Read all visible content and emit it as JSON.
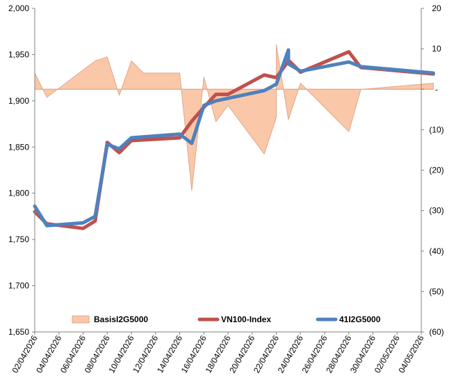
{
  "chart_data": {
    "type": "line",
    "x_dates": [
      "02/04/2026",
      "04/04/2026",
      "06/04/2026",
      "08/04/2026",
      "10/04/2026",
      "12/04/2026",
      "14/04/2026",
      "16/04/2026",
      "18/04/2026",
      "20/04/2026",
      "22/04/2026",
      "24/04/2026",
      "26/04/2026",
      "28/04/2026",
      "30/04/2026",
      "02/05/2026",
      "04/05/2026"
    ],
    "x_tick_labels": [
      "02/04/2026",
      "04/04/2026",
      "06/04/2026",
      "08/04/2026",
      "10/04/2026",
      "12/04/2026",
      "14/04/2026",
      "16/04/2026",
      "18/04/2026",
      "20/04/2026",
      "22/04/2026",
      "24/04/2026",
      "26/04/2026",
      "28/04/2026",
      "30/04/2026",
      "02/05/2026",
      "04/05/2026"
    ],
    "left_axis": {
      "ylim": [
        1650,
        2000
      ],
      "ticks": [
        "1,650",
        "1,700",
        "1,750",
        "1,800",
        "1,850",
        "1,900",
        "1,950",
        "2,000"
      ],
      "tick_values": [
        1650,
        1700,
        1750,
        1800,
        1850,
        1900,
        1950,
        2000
      ]
    },
    "right_axis": {
      "ylim": [
        -60,
        20
      ],
      "ticks": [
        "(60)",
        "(50)",
        "(40)",
        "(30)",
        "(20)",
        "(10)",
        "-",
        "10",
        "20"
      ],
      "tick_values": [
        -60,
        -50,
        -40,
        -30,
        -20,
        -10,
        0,
        10,
        20
      ]
    },
    "series": [
      {
        "name": "BasisI2G5000",
        "kind": "area",
        "axis": "right",
        "color_fill": "#FAC8A8",
        "color_line": "#E2A58A",
        "points": [
          [
            "02/04/2026",
            4
          ],
          [
            "03/04/2026",
            -2
          ],
          [
            "07/04/2026",
            7
          ],
          [
            "08/04/2026",
            8
          ],
          [
            "09/04/2026",
            -1.5
          ],
          [
            "10/04/2026",
            7
          ],
          [
            "11/04/2026",
            4
          ],
          [
            "14/04/2026",
            4
          ],
          [
            "15/04/2026",
            -25
          ],
          [
            "15/04/2026",
            -25
          ],
          [
            "16/04/2026",
            3
          ],
          [
            "17/04/2026",
            -8
          ],
          [
            "18/04/2026",
            -4
          ],
          [
            "21/04/2026",
            -16
          ],
          [
            "22/04/2026",
            -7
          ],
          [
            "22/04/2026",
            11
          ],
          [
            "23/04/2026",
            -7.5
          ],
          [
            "24/04/2026",
            1.5
          ],
          [
            "28/04/2026",
            -10.5
          ],
          [
            "29/04/2026",
            0
          ],
          [
            "30/04/2026",
            0.2
          ],
          [
            "05/05/2026",
            1.5
          ]
        ]
      },
      {
        "name": "VN100-Index",
        "kind": "line",
        "axis": "left",
        "color": "#C0504D",
        "points": [
          [
            "02/04/2026",
            1780
          ],
          [
            "03/04/2026",
            1767
          ],
          [
            "06/04/2026",
            1762
          ],
          [
            "07/04/2026",
            1770
          ],
          [
            "08/04/2026",
            1855
          ],
          [
            "09/04/2026",
            1844
          ],
          [
            "10/04/2026",
            1857
          ],
          [
            "14/04/2026",
            1860
          ],
          [
            "15/04/2026",
            1878
          ],
          [
            "16/04/2026",
            1893
          ],
          [
            "17/04/2026",
            1907
          ],
          [
            "18/04/2026",
            1907
          ],
          [
            "21/04/2026",
            1928
          ],
          [
            "22/04/2026",
            1925
          ],
          [
            "23/04/2026",
            1943
          ],
          [
            "23/04/2026",
            1944
          ],
          [
            "24/04/2026",
            1931
          ],
          [
            "28/04/2026",
            1953
          ],
          [
            "29/04/2026",
            1936
          ],
          [
            "05/05/2026",
            1929
          ]
        ]
      },
      {
        "name": "41I2G5000",
        "kind": "line",
        "axis": "left",
        "color": "#4F81BD",
        "points": [
          [
            "02/04/2026",
            1786
          ],
          [
            "03/04/2026",
            1765
          ],
          [
            "06/04/2026",
            1768
          ],
          [
            "07/04/2026",
            1775
          ],
          [
            "08/04/2026",
            1853
          ],
          [
            "09/04/2026",
            1848
          ],
          [
            "10/04/2026",
            1860
          ],
          [
            "14/04/2026",
            1864
          ],
          [
            "15/04/2026",
            1854
          ],
          [
            "16/04/2026",
            1895
          ],
          [
            "17/04/2026",
            1900
          ],
          [
            "21/04/2026",
            1911
          ],
          [
            "22/04/2026",
            1918
          ],
          [
            "23/04/2026",
            1955
          ],
          [
            "23/04/2026",
            1940
          ],
          [
            "24/04/2026",
            1932
          ],
          [
            "28/04/2026",
            1942
          ],
          [
            "29/04/2026",
            1937
          ],
          [
            "05/05/2026",
            1930
          ]
        ]
      }
    ],
    "legend": {
      "placement": "bottom-inside",
      "entries": [
        "BasisI2G5000",
        "VN100-Index",
        "41I2G5000"
      ]
    },
    "grid": false,
    "title": "",
    "xlabel": "",
    "ylabel": ""
  }
}
